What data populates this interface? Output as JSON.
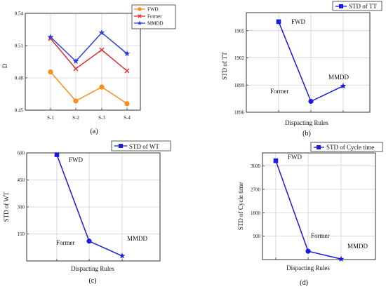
{
  "panels": [
    {
      "id": "a",
      "caption": "(a)",
      "chart_data": {
        "type": "line",
        "categories": [
          "S-1",
          "S-2",
          "S-3",
          "S-4"
        ],
        "ylabel": "D",
        "xlabel": "",
        "ylim": [
          0.45,
          0.54
        ],
        "yticks": [
          "0.45",
          "0.48",
          "0.51",
          "0.54"
        ],
        "grid": true,
        "legend": "top-right",
        "series": [
          {
            "name": "FWD",
            "color": "#ff8c1a",
            "marker": "circle",
            "values": [
              0.4855,
              0.4585,
              0.4715,
              0.456
            ]
          },
          {
            "name": "Former",
            "color": "#e03030",
            "marker": "x",
            "values": [
              0.5165,
              0.4885,
              0.506,
              0.4865
            ]
          },
          {
            "name": "MMDD",
            "color": "#2a3ee0",
            "marker": "star",
            "values": [
              0.518,
              0.4955,
              0.522,
              0.5025
            ]
          }
        ]
      }
    },
    {
      "id": "b",
      "caption": "(b)",
      "chart_data": {
        "type": "line",
        "categories": [
          "FWD",
          "Former",
          "MMDD"
        ],
        "category_labels_on_axis": false,
        "xlabel": "Dispacting Rules",
        "ylabel": "STD of TT",
        "ylim": [
          1896,
          1907
        ],
        "yticks": [
          "1896",
          "1899",
          "1902",
          "1905"
        ],
        "grid": true,
        "legend": "top-right",
        "series": [
          {
            "name": "STD of  TT",
            "color": "#1a1ae0",
            "markers": [
              "square",
              "circle",
              "star"
            ],
            "values": [
              1906,
              1897.2,
              1898.9
            ]
          }
        ],
        "annotations": [
          "FWD",
          "Former",
          "MMDD"
        ]
      }
    },
    {
      "id": "c",
      "caption": "(c)",
      "chart_data": {
        "type": "line",
        "categories": [
          "FWD",
          "Former",
          "MMDD"
        ],
        "category_labels_on_axis": false,
        "xlabel": "Dispacting Rules",
        "ylabel": "STD of WT",
        "ylim": [
          0,
          600
        ],
        "yticks": [
          "150",
          "300",
          "450",
          "600"
        ],
        "grid": true,
        "legend": "top-right",
        "series": [
          {
            "name": "STD of  WT",
            "color": "#1a1ae0",
            "markers": [
              "square",
              "circle",
              "star"
            ],
            "values": [
              590,
              110,
              28
            ]
          }
        ],
        "annotations": [
          "FWD",
          "Former",
          "MMDD"
        ]
      }
    },
    {
      "id": "d",
      "caption": "(d)",
      "chart_data": {
        "type": "line",
        "categories": [
          "FWD",
          "Former",
          "MMDD"
        ],
        "category_labels_on_axis": false,
        "xlabel": "Dispacting Rules",
        "ylabel": "STD of Cycle time",
        "ylim": [
          0,
          4100
        ],
        "yticks": [
          "900",
          "1800",
          "2700",
          "3600"
        ],
        "grid": true,
        "legend": "top-right",
        "series": [
          {
            "name": "STD of  Cycle time",
            "color": "#1a1ae0",
            "markers": [
              "square",
              "circle",
              "star"
            ],
            "values": [
              3800,
              320,
              20
            ]
          }
        ],
        "annotations": [
          "FWD",
          "Former",
          "MMDD"
        ]
      }
    }
  ]
}
